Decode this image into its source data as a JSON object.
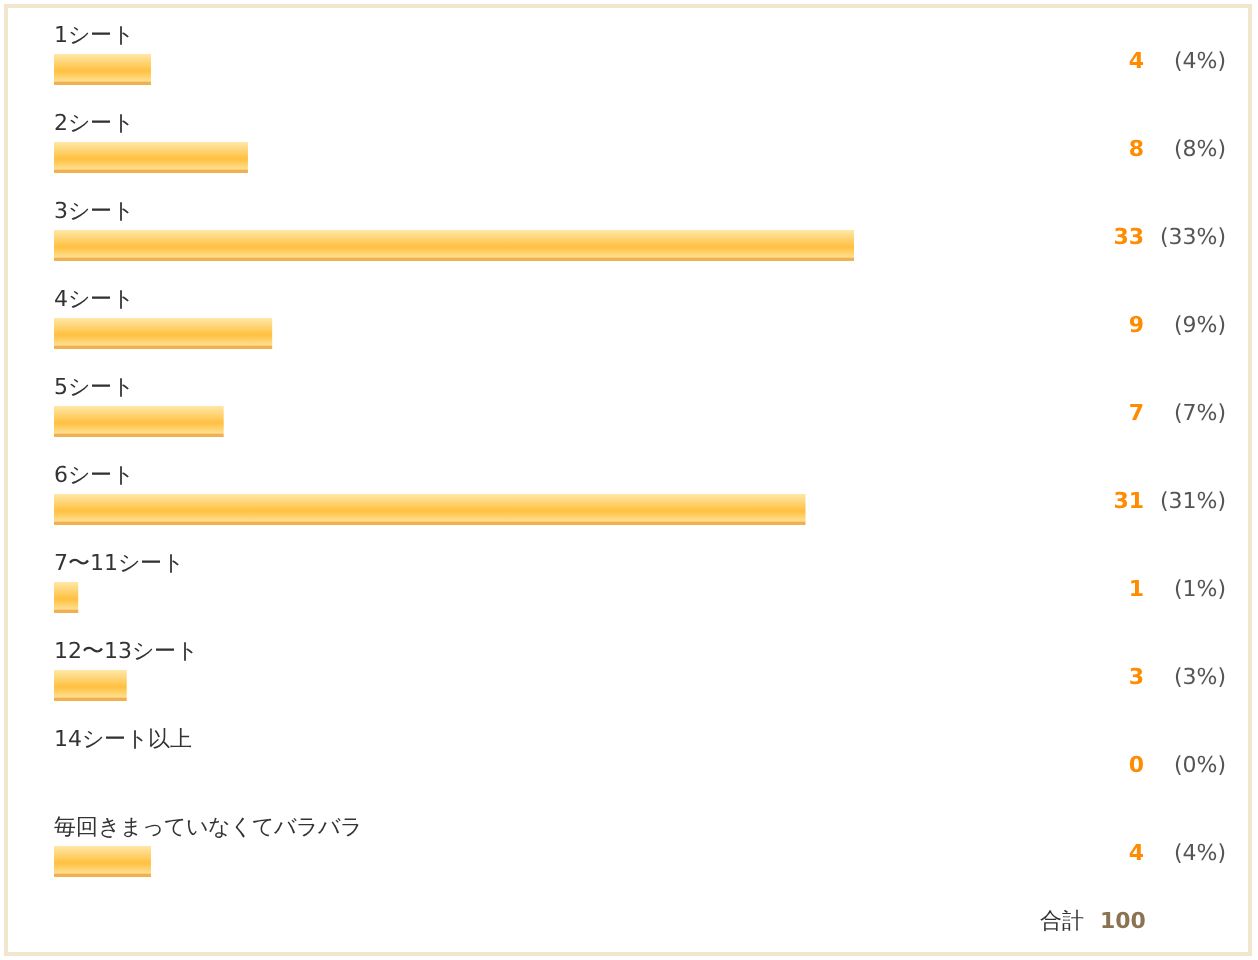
{
  "chart_data": {
    "type": "bar",
    "orientation": "horizontal",
    "data_labels": true,
    "color": "#ffc040",
    "categories": [
      "1シート",
      "2シート",
      "3シート",
      "4シート",
      "5シート",
      "6シート",
      "7〜11シート",
      "12〜13シート",
      "14シート以上",
      "毎回きまっていなくてバラバラ"
    ],
    "values": [
      4,
      8,
      33,
      9,
      7,
      31,
      1,
      3,
      0,
      4
    ],
    "annotations": [
      "(4%)",
      "(8%)",
      "(33%)",
      "(9%)",
      "(7%)",
      "(31%)",
      "(1%)",
      "(3%)",
      "(0%)",
      "(4%)",
      "合計",
      "100"
    ]
  }
}
